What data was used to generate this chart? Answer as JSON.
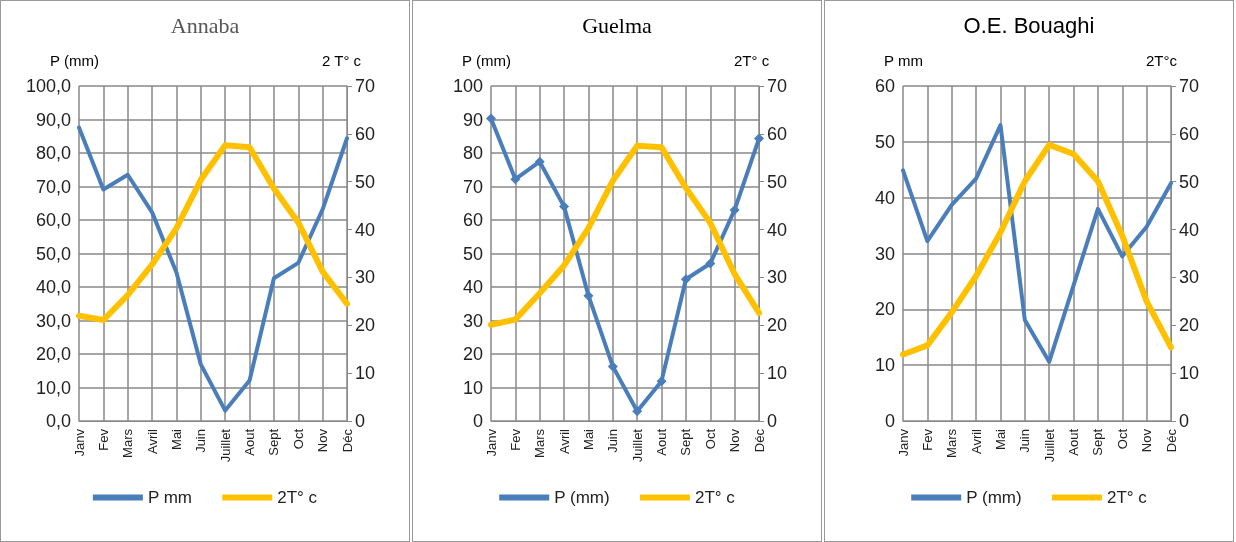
{
  "chart_data": [
    {
      "type": "line",
      "title": "Annaba",
      "ylabel": "P (mm)",
      "y2label": "2 T° c",
      "categories": [
        "Janv",
        "Fev",
        "Mars",
        "Avril",
        "Mai",
        "Juin",
        "Juillet",
        "Aout",
        "Sept",
        "Oct",
        "Nov",
        "Déc"
      ],
      "series": [
        {
          "name": "P mm",
          "color": "#4a7ebb",
          "values": [
            87.6,
            69.1,
            73.5,
            62.3,
            44.3,
            16.9,
            3.1,
            12.1,
            42.6,
            47.2,
            63.2,
            84.4
          ]
        },
        {
          "name": "2T° c",
          "color": "#ffc000",
          "axis": "y2",
          "values": [
            22.0,
            21.1,
            26.3,
            32.7,
            40.3,
            50.4,
            57.6,
            57.2,
            48.6,
            41.5,
            31.2,
            24.5
          ]
        }
      ],
      "ylim": [
        0,
        100
      ],
      "yticks": [
        {
          "value": 0,
          "label": "0,0"
        },
        {
          "value": 10,
          "label": "10,0"
        },
        {
          "value": 20,
          "label": "20,0"
        },
        {
          "value": 30,
          "label": "30,0"
        },
        {
          "value": 40,
          "label": "40,0"
        },
        {
          "value": 50,
          "label": "50,0"
        },
        {
          "value": 60,
          "label": "60,0"
        },
        {
          "value": 70,
          "label": "70,0"
        },
        {
          "value": 80,
          "label": "80,0"
        },
        {
          "value": 90,
          "label": "90,0"
        },
        {
          "value": 100,
          "label": "100,0"
        }
      ],
      "y2lim": [
        0,
        70
      ],
      "y2ticks": [
        0,
        10,
        20,
        30,
        40,
        50,
        60,
        70
      ],
      "grid": true,
      "legend": "bottom",
      "marker": "none"
    },
    {
      "type": "line",
      "title": "Guelma",
      "ylabel": "P (mm)",
      "y2label": "2T° c",
      "categories": [
        "Janv",
        "Fev",
        "Mars",
        "Avril",
        "Mai",
        "Juin",
        "Juillet",
        "Aout",
        "Sept",
        "Oct",
        "Nov",
        "Déc"
      ],
      "series": [
        {
          "name": "P (mm)",
          "color": "#4a7ebb",
          "marker": "diamond",
          "values": [
            90.3,
            72.2,
            77.4,
            64.0,
            37.4,
            16.3,
            2.9,
            11.9,
            42.3,
            47.0,
            63.0,
            84.3
          ]
        },
        {
          "name": "2T° c",
          "color": "#ffc000",
          "axis": "y2",
          "values": [
            20.1,
            21.2,
            26.7,
            32.5,
            40.3,
            50.2,
            57.5,
            57.2,
            48.7,
            41.4,
            30.7,
            22.6
          ]
        }
      ],
      "ylim": [
        0,
        100
      ],
      "yticks": [
        0,
        10,
        20,
        30,
        40,
        50,
        60,
        70,
        80,
        90,
        100
      ],
      "y2lim": [
        0,
        70
      ],
      "y2ticks": [
        0,
        10,
        20,
        30,
        40,
        50,
        60,
        70
      ],
      "grid": true,
      "legend": "bottom",
      "marker": "none"
    },
    {
      "type": "line",
      "title": "O.E. Bouaghi",
      "ylabel": "P mm",
      "y2label": "2T°c",
      "categories": [
        "Janv",
        "Fev",
        "Mars",
        "Avril",
        "Mai",
        "Juin",
        "Juillet",
        "Aout",
        "Sept",
        "Oct",
        "Nov",
        "Déc"
      ],
      "series": [
        {
          "name": "P (mm)",
          "color": "#4a7ebb",
          "values": [
            44.9,
            32.2,
            38.7,
            43.4,
            53.0,
            18.1,
            10.6,
            24.3,
            38.0,
            29.5,
            34.8,
            42.6
          ]
        },
        {
          "name": "2T° c",
          "color": "#ffc000",
          "axis": "y2",
          "values": [
            13.9,
            15.8,
            22.7,
            30.3,
            39.4,
            50.1,
            57.7,
            55.8,
            50.1,
            38.7,
            25.0,
            15.4
          ]
        }
      ],
      "ylim": [
        0,
        60
      ],
      "yticks": [
        0,
        10,
        20,
        30,
        40,
        50,
        60
      ],
      "y2lim": [
        0,
        70
      ],
      "y2ticks": [
        0,
        10,
        20,
        30,
        40,
        50,
        60,
        70
      ],
      "grid": true,
      "legend": "bottom",
      "marker": "none"
    }
  ]
}
